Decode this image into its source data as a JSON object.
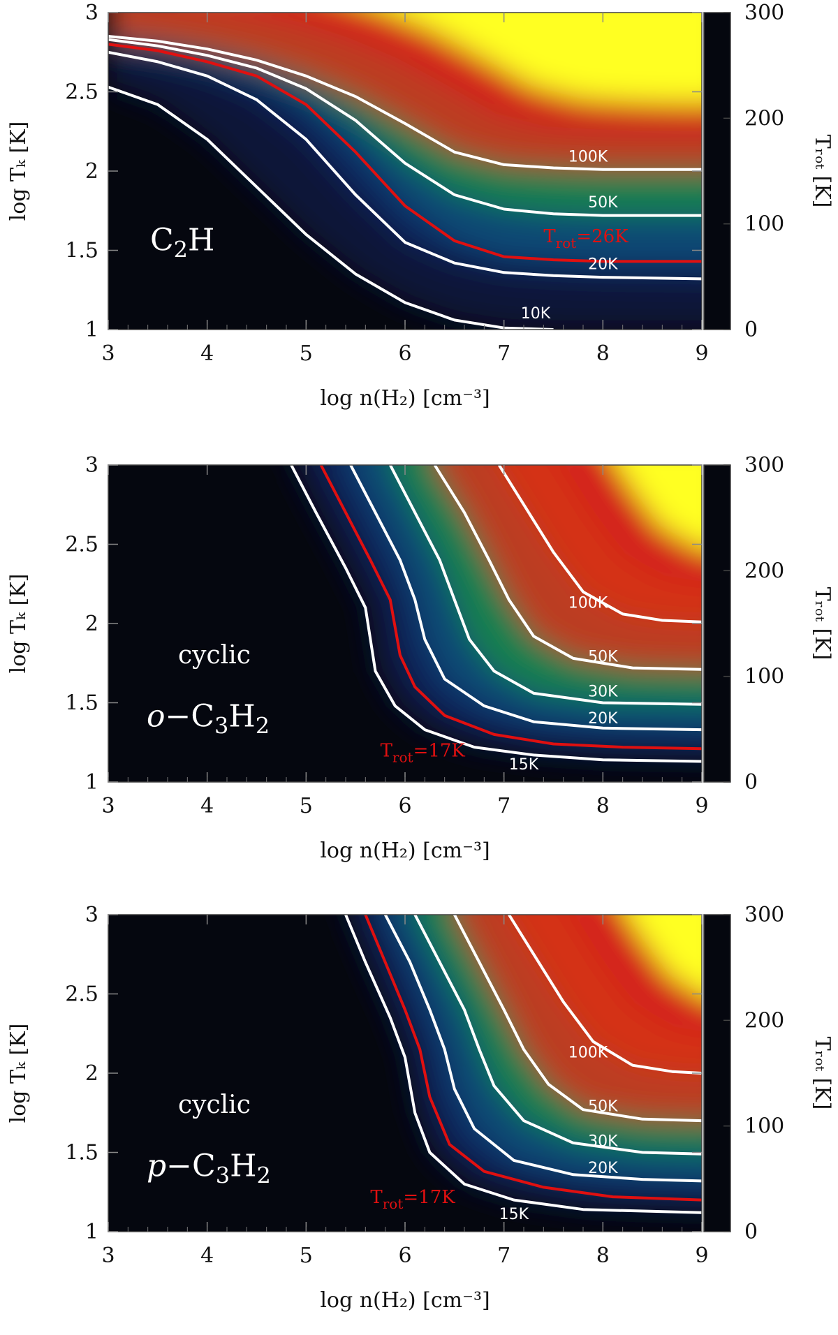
{
  "colors": {
    "background": "#05070f",
    "colormap": [
      "#05070f",
      "#0d1a55",
      "#0f4d7a",
      "#1c8a3a",
      "#f2a01a",
      "#d41c1c",
      "#ffff22"
    ],
    "white_contour": "#ffffff",
    "red_contour": "#e01010"
  },
  "chart_data": [
    {
      "type": "heatmap",
      "title": "",
      "species": {
        "text_main": "C",
        "sub1": "2",
        "text2": "H",
        "sub2": "",
        "prefix": "",
        "italic": "",
        "cyclic": ""
      },
      "xlabel": "log n(H₂) [cm⁻³]",
      "ylabel": "log Tₖ [K]",
      "colorbar_label": "Tᵣₒₜ [K]",
      "xlim": [
        3,
        9
      ],
      "ylim": [
        1,
        3
      ],
      "x_ticks": [
        "3",
        "4",
        "5",
        "6",
        "7",
        "8",
        "9"
      ],
      "y_ticks": [
        "1",
        "1.5",
        "2",
        "2.5",
        "3"
      ],
      "colorbar_ticks": [
        "0",
        "100",
        "200",
        "300"
      ],
      "colorbar_range": [
        0,
        300
      ],
      "contours": [
        {
          "label": "10K",
          "color": "white",
          "points": [
            [
              3,
              2.53
            ],
            [
              3.5,
              2.42
            ],
            [
              4,
              2.2
            ],
            [
              4.5,
              1.9
            ],
            [
              5,
              1.6
            ],
            [
              5.5,
              1.35
            ],
            [
              6,
              1.17
            ],
            [
              6.5,
              1.06
            ],
            [
              7,
              1.01
            ],
            [
              7.5,
              1.0
            ]
          ]
        },
        {
          "label": "20K",
          "color": "white",
          "points": [
            [
              3,
              2.75
            ],
            [
              3.5,
              2.69
            ],
            [
              4,
              2.6
            ],
            [
              4.5,
              2.45
            ],
            [
              5,
              2.2
            ],
            [
              5.5,
              1.85
            ],
            [
              6,
              1.55
            ],
            [
              6.5,
              1.42
            ],
            [
              7,
              1.36
            ],
            [
              7.5,
              1.34
            ],
            [
              8,
              1.33
            ],
            [
              9,
              1.32
            ]
          ]
        },
        {
          "label": "T_rot=26K",
          "color": "red",
          "points": [
            [
              3,
              2.8
            ],
            [
              3.5,
              2.76
            ],
            [
              4,
              2.69
            ],
            [
              4.5,
              2.6
            ],
            [
              5,
              2.42
            ],
            [
              5.5,
              2.12
            ],
            [
              6,
              1.78
            ],
            [
              6.5,
              1.56
            ],
            [
              7,
              1.46
            ],
            [
              7.5,
              1.44
            ],
            [
              8,
              1.43
            ],
            [
              9,
              1.43
            ]
          ]
        },
        {
          "label": "50K",
          "color": "white",
          "points": [
            [
              3,
              2.83
            ],
            [
              3.5,
              2.79
            ],
            [
              4,
              2.73
            ],
            [
              4.5,
              2.65
            ],
            [
              5,
              2.52
            ],
            [
              5.5,
              2.32
            ],
            [
              6,
              2.05
            ],
            [
              6.5,
              1.85
            ],
            [
              7,
              1.76
            ],
            [
              7.5,
              1.73
            ],
            [
              8,
              1.72
            ],
            [
              9,
              1.72
            ]
          ]
        },
        {
          "label": "100K",
          "color": "white",
          "points": [
            [
              3,
              2.85
            ],
            [
              3.5,
              2.82
            ],
            [
              4,
              2.77
            ],
            [
              4.5,
              2.7
            ],
            [
              5,
              2.6
            ],
            [
              5.5,
              2.47
            ],
            [
              6,
              2.3
            ],
            [
              6.5,
              2.12
            ],
            [
              7,
              2.04
            ],
            [
              7.5,
              2.02
            ],
            [
              8,
              2.01
            ],
            [
              9,
              2.01
            ]
          ]
        }
      ],
      "contour_labels": [
        {
          "text": "100K",
          "x": 7.65,
          "y": 2.06
        },
        {
          "text": "50K",
          "x": 7.85,
          "y": 1.77
        },
        {
          "text": "20K",
          "x": 7.85,
          "y": 1.38
        },
        {
          "text": "10K",
          "x": 7.17,
          "y": 1.07
        }
      ],
      "red_label": {
        "text_T": "T",
        "text_sub": "rot",
        "text_val": "=26K",
        "x": 7.4,
        "y": 1.55
      }
    },
    {
      "type": "heatmap",
      "title": "",
      "species": {
        "cyclic": "cyclic",
        "italic": "o",
        "dash": "−",
        "text_main": "C",
        "sub1": "3",
        "text2": "H",
        "sub2": "2"
      },
      "xlabel": "log n(H₂) [cm⁻³]",
      "ylabel": "log Tₖ [K]",
      "colorbar_label": "Tᵣₒₜ [K]",
      "xlim": [
        3,
        9
      ],
      "ylim": [
        1,
        3
      ],
      "x_ticks": [
        "3",
        "4",
        "5",
        "6",
        "7",
        "8",
        "9"
      ],
      "y_ticks": [
        "1",
        "1.5",
        "2",
        "2.5",
        "3"
      ],
      "colorbar_ticks": [
        "0",
        "100",
        "200",
        "300"
      ],
      "colorbar_range": [
        0,
        300
      ],
      "contours": [
        {
          "label": "15K",
          "color": "white",
          "points": [
            [
              4.85,
              3.0
            ],
            [
              5.1,
              2.7
            ],
            [
              5.4,
              2.35
            ],
            [
              5.6,
              2.1
            ],
            [
              5.7,
              1.7
            ],
            [
              5.9,
              1.48
            ],
            [
              6.2,
              1.33
            ],
            [
              6.7,
              1.22
            ],
            [
              7.3,
              1.17
            ],
            [
              8,
              1.14
            ],
            [
              9,
              1.13
            ]
          ]
        },
        {
          "label": "T_rot=17K",
          "color": "red",
          "points": [
            [
              5.15,
              3.0
            ],
            [
              5.4,
              2.7
            ],
            [
              5.65,
              2.4
            ],
            [
              5.85,
              2.15
            ],
            [
              5.95,
              1.8
            ],
            [
              6.1,
              1.6
            ],
            [
              6.4,
              1.42
            ],
            [
              6.9,
              1.3
            ],
            [
              7.5,
              1.24
            ],
            [
              8.2,
              1.22
            ],
            [
              9,
              1.21
            ]
          ]
        },
        {
          "label": "20K",
          "color": "white",
          "points": [
            [
              5.45,
              3.0
            ],
            [
              5.7,
              2.7
            ],
            [
              5.95,
              2.4
            ],
            [
              6.1,
              2.15
            ],
            [
              6.2,
              1.9
            ],
            [
              6.4,
              1.65
            ],
            [
              6.8,
              1.48
            ],
            [
              7.3,
              1.38
            ],
            [
              8,
              1.34
            ],
            [
              9,
              1.33
            ]
          ]
        },
        {
          "label": "30K",
          "color": "white",
          "points": [
            [
              5.85,
              3.0
            ],
            [
              6.1,
              2.7
            ],
            [
              6.35,
              2.4
            ],
            [
              6.5,
              2.15
            ],
            [
              6.65,
              1.9
            ],
            [
              6.9,
              1.7
            ],
            [
              7.3,
              1.56
            ],
            [
              8,
              1.5
            ],
            [
              9,
              1.49
            ]
          ]
        },
        {
          "label": "50K",
          "color": "white",
          "points": [
            [
              6.3,
              3.0
            ],
            [
              6.6,
              2.7
            ],
            [
              6.85,
              2.4
            ],
            [
              7.05,
              2.15
            ],
            [
              7.3,
              1.92
            ],
            [
              7.7,
              1.78
            ],
            [
              8.3,
              1.72
            ],
            [
              9,
              1.71
            ]
          ]
        },
        {
          "label": "100K",
          "color": "white",
          "points": [
            [
              6.95,
              3.0
            ],
            [
              7.25,
              2.7
            ],
            [
              7.5,
              2.45
            ],
            [
              7.8,
              2.2
            ],
            [
              8.2,
              2.06
            ],
            [
              8.6,
              2.02
            ],
            [
              9,
              2.01
            ]
          ]
        }
      ],
      "contour_labels": [
        {
          "text": "100K",
          "x": 7.65,
          "y": 2.1
        },
        {
          "text": "50K",
          "x": 7.85,
          "y": 1.76
        },
        {
          "text": "30K",
          "x": 7.85,
          "y": 1.54
        },
        {
          "text": "20K",
          "x": 7.85,
          "y": 1.37
        },
        {
          "text": "15K",
          "x": 7.05,
          "y": 1.08
        }
      ],
      "red_label": {
        "text_T": "T",
        "text_sub": "rot",
        "text_val": "=17K",
        "x": 5.75,
        "y": 1.16
      }
    },
    {
      "type": "heatmap",
      "title": "",
      "species": {
        "cyclic": "cyclic",
        "italic": "p",
        "dash": "−",
        "text_main": "C",
        "sub1": "3",
        "text2": "H",
        "sub2": "2"
      },
      "xlabel": "log n(H₂) [cm⁻³]",
      "ylabel": "log Tₖ [K]",
      "colorbar_label": "Tᵣₒₜ [K]",
      "xlim": [
        3,
        9
      ],
      "ylim": [
        1,
        3
      ],
      "x_ticks": [
        "3",
        "4",
        "5",
        "6",
        "7",
        "8",
        "9"
      ],
      "y_ticks": [
        "1",
        "1.5",
        "2",
        "2.5",
        "3"
      ],
      "colorbar_ticks": [
        "0",
        "100",
        "200",
        "300"
      ],
      "colorbar_range": [
        0,
        300
      ],
      "contours": [
        {
          "label": "15K",
          "color": "white",
          "points": [
            [
              5.4,
              3.0
            ],
            [
              5.6,
              2.7
            ],
            [
              5.85,
              2.35
            ],
            [
              6.0,
              2.1
            ],
            [
              6.1,
              1.75
            ],
            [
              6.25,
              1.5
            ],
            [
              6.6,
              1.3
            ],
            [
              7.1,
              1.2
            ],
            [
              7.8,
              1.14
            ],
            [
              9,
              1.12
            ]
          ]
        },
        {
          "label": "T_rot=17K",
          "color": "red",
          "points": [
            [
              5.6,
              3.0
            ],
            [
              5.8,
              2.7
            ],
            [
              6.0,
              2.4
            ],
            [
              6.15,
              2.15
            ],
            [
              6.25,
              1.85
            ],
            [
              6.45,
              1.55
            ],
            [
              6.8,
              1.38
            ],
            [
              7.4,
              1.28
            ],
            [
              8.1,
              1.22
            ],
            [
              9,
              1.2
            ]
          ]
        },
        {
          "label": "20K",
          "color": "white",
          "points": [
            [
              5.8,
              3.0
            ],
            [
              6.05,
              2.7
            ],
            [
              6.25,
              2.4
            ],
            [
              6.4,
              2.15
            ],
            [
              6.5,
              1.9
            ],
            [
              6.7,
              1.65
            ],
            [
              7.1,
              1.45
            ],
            [
              7.7,
              1.36
            ],
            [
              8.4,
              1.33
            ],
            [
              9,
              1.32
            ]
          ]
        },
        {
          "label": "30K",
          "color": "white",
          "points": [
            [
              6.1,
              3.0
            ],
            [
              6.35,
              2.7
            ],
            [
              6.6,
              2.4
            ],
            [
              6.75,
              2.15
            ],
            [
              6.9,
              1.92
            ],
            [
              7.2,
              1.7
            ],
            [
              7.7,
              1.56
            ],
            [
              8.4,
              1.5
            ],
            [
              9,
              1.49
            ]
          ]
        },
        {
          "label": "50K",
          "color": "white",
          "points": [
            [
              6.5,
              3.0
            ],
            [
              6.75,
              2.7
            ],
            [
              7.0,
              2.4
            ],
            [
              7.2,
              2.15
            ],
            [
              7.45,
              1.93
            ],
            [
              7.8,
              1.77
            ],
            [
              8.4,
              1.71
            ],
            [
              9,
              1.7
            ]
          ]
        },
        {
          "label": "100K",
          "color": "white",
          "points": [
            [
              7.05,
              3.0
            ],
            [
              7.35,
              2.7
            ],
            [
              7.6,
              2.45
            ],
            [
              7.9,
              2.2
            ],
            [
              8.3,
              2.05
            ],
            [
              8.7,
              2.01
            ],
            [
              9,
              2.0
            ]
          ]
        }
      ],
      "contour_labels": [
        {
          "text": "100K",
          "x": 7.65,
          "y": 2.1
        },
        {
          "text": "50K",
          "x": 7.85,
          "y": 1.76
        },
        {
          "text": "30K",
          "x": 7.85,
          "y": 1.54
        },
        {
          "text": "20K",
          "x": 7.85,
          "y": 1.37
        },
        {
          "text": "15K",
          "x": 6.95,
          "y": 1.08
        }
      ],
      "red_label": {
        "text_T": "T",
        "text_sub": "rot",
        "text_val": "=17K",
        "x": 5.65,
        "y": 1.18
      }
    }
  ]
}
